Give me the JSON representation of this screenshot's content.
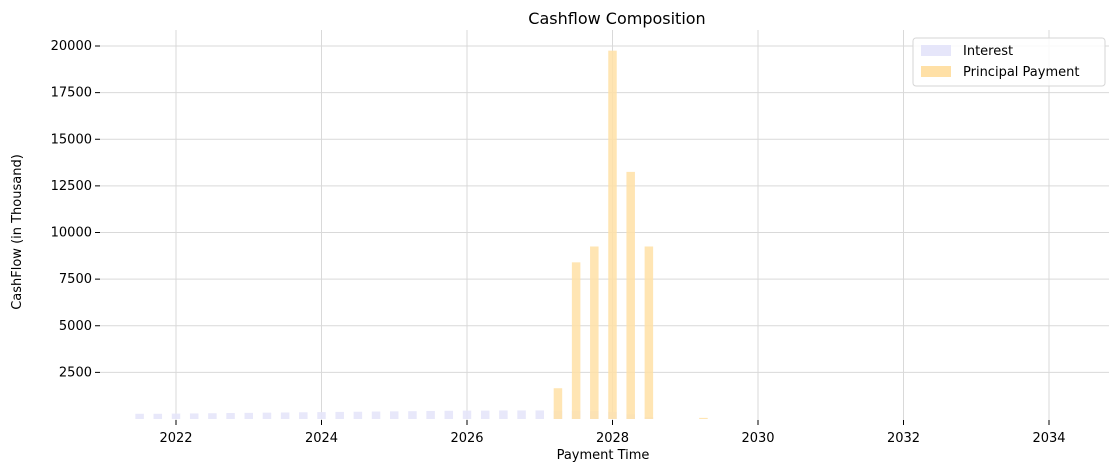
{
  "chart_data": {
    "type": "bar",
    "title": "Cashflow Composition",
    "xlabel": "Payment Time",
    "ylabel": "CashFlow (in Thousand)",
    "xlim": [
      2021.25,
      2034.75
    ],
    "ylim": [
      0,
      20700
    ],
    "x_ticks": [
      2022,
      2024,
      2026,
      2028,
      2030,
      2032,
      2034
    ],
    "y_ticks": [
      2500,
      5000,
      7500,
      10000,
      12500,
      15000,
      17500,
      20000
    ],
    "grid": true,
    "legend_position": "top-right",
    "series": [
      {
        "name": "Interest",
        "color": "#e6e6fa",
        "x": [
          2021.5,
          2021.75,
          2022.0,
          2022.25,
          2022.5,
          2022.75,
          2023.0,
          2023.25,
          2023.5,
          2023.75,
          2024.0,
          2024.25,
          2024.5,
          2024.75,
          2025.0,
          2025.25,
          2025.5,
          2025.75,
          2026.0,
          2026.25,
          2026.5,
          2026.75,
          2027.0,
          2027.25,
          2027.5,
          2027.75,
          2028.0,
          2028.25,
          2028.5
        ],
        "values": [
          280,
          280,
          290,
          300,
          310,
          320,
          330,
          340,
          350,
          360,
          370,
          380,
          390,
          400,
          410,
          420,
          430,
          440,
          450,
          450,
          460,
          460,
          460,
          450,
          440,
          420,
          380,
          250,
          100
        ]
      },
      {
        "name": "Principal Payment",
        "color": "#ffe0a6",
        "x": [
          2027.25,
          2027.5,
          2027.75,
          2028.0,
          2028.25,
          2028.5,
          2029.25
        ],
        "values": [
          1650,
          8400,
          9250,
          19750,
          13250,
          9250,
          60
        ]
      }
    ]
  }
}
